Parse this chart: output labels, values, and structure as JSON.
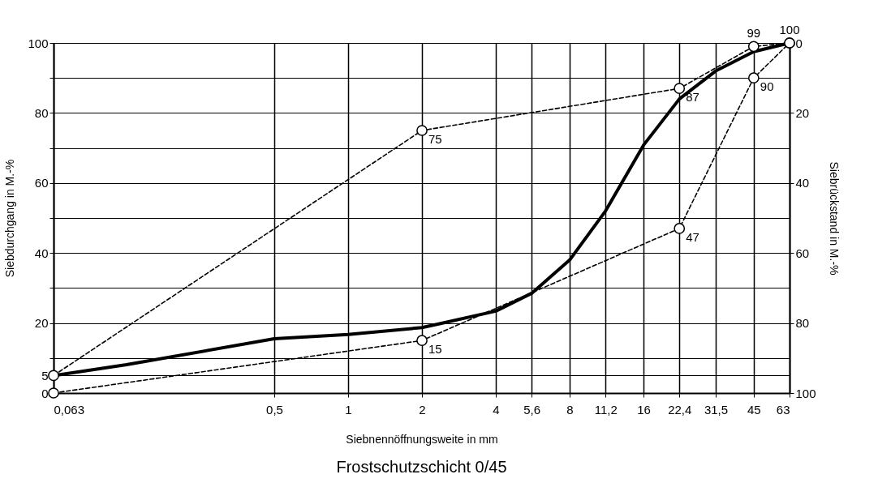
{
  "chart_data": {
    "type": "line",
    "title": "Frostschutzschicht 0/45",
    "xlabel": "Siebnennöffnungsweite in mm",
    "ylabel": "Siebdurchgang in M.-%",
    "y2label": "Siebrückstand in M.-%",
    "log": "x",
    "grid": true,
    "xlim": [
      0.063,
      63
    ],
    "xticks": [
      {
        "value": 0.063,
        "label": "0,063"
      },
      {
        "value": 0.5,
        "label": "0,5"
      },
      1,
      2,
      4,
      {
        "value": 5.6,
        "label": "5,6"
      },
      8,
      {
        "value": 11.2,
        "label": "11,2"
      },
      16,
      {
        "value": 22.4,
        "label": "22,4"
      },
      {
        "value": 31.5,
        "label": "31,5"
      },
      45,
      63
    ],
    "ylim": [
      0,
      100
    ],
    "yticks": [
      0,
      5,
      {
        "value": 10,
        "label": null
      },
      20,
      {
        "value": 30,
        "label": null
      },
      40,
      {
        "value": 50,
        "label": null
      },
      60,
      {
        "value": 70,
        "label": null
      },
      80,
      {
        "value": 90,
        "label": null
      },
      100
    ],
    "y2lim": [
      100,
      0
    ],
    "y2ticks": [
      0,
      20,
      40,
      60,
      80,
      100
    ],
    "series": [
      {
        "color": "#000000",
        "line_style": "solid",
        "marker": "none",
        "x": [
          0.063,
          0.125,
          0.5,
          1,
          2,
          2.4,
          4,
          5.6,
          8,
          11.2,
          16,
          22.4,
          31.5,
          45,
          63
        ],
        "values": [
          5,
          8.1,
          15.5,
          16.7,
          18.7,
          19.9,
          23.4,
          28.5,
          38,
          52,
          70.8,
          84,
          92,
          97.5,
          100
        ]
      },
      {
        "color": "#000000",
        "line_style": "dashed",
        "marker": "circle",
        "x": [
          0.063,
          2,
          22.4,
          45,
          63
        ],
        "values": [
          5,
          75,
          87,
          99,
          100
        ],
        "value_labels": [
          null,
          "75",
          "87",
          "99",
          "100"
        ]
      },
      {
        "color": "#000000",
        "line_style": "dashed",
        "marker": "circle",
        "x": [
          0.063,
          2,
          22.4,
          45,
          63
        ],
        "values": [
          0,
          15,
          47,
          90,
          100
        ],
        "value_labels": [
          null,
          "15",
          "47",
          "90",
          null
        ]
      }
    ]
  }
}
